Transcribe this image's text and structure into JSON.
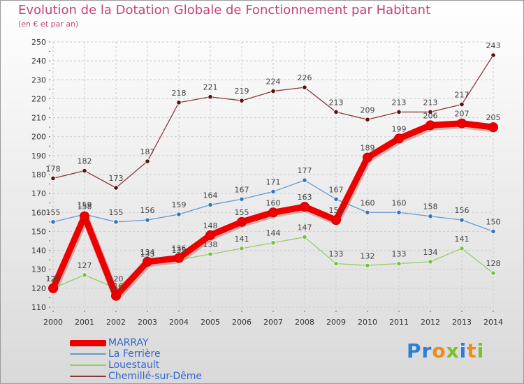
{
  "title": "Evolution de la Dotation Globale de Fonctionnement par Habitant",
  "subtitle": "(en € et par an)",
  "logo_text": "Proxiti",
  "chart_data": {
    "type": "line",
    "title": "Evolution de la Dotation Globale de Fonctionnement par Habitant",
    "subtitle": "(en € et par an)",
    "xlabel": "",
    "ylabel": "",
    "ylim": [
      110,
      250
    ],
    "yticks": [
      110,
      120,
      130,
      140,
      150,
      160,
      170,
      180,
      190,
      200,
      210,
      220,
      230,
      240,
      250
    ],
    "grid": true,
    "legend_position": "bottom-left",
    "categories": [
      "2000",
      "2001",
      "2002",
      "2003",
      "2004",
      "2005",
      "2006",
      "2007",
      "2008",
      "2009",
      "2010",
      "2011",
      "2012",
      "2013",
      "2014"
    ],
    "series": [
      {
        "name": "Chemillé-sur-Dême",
        "color": "#8b3a3a",
        "marker": "#5a1010",
        "width": 1.3,
        "values": [
          178,
          182,
          173,
          187,
          218,
          221,
          219,
          224,
          226,
          213,
          209,
          213,
          213,
          217,
          243
        ]
      },
      {
        "name": "Louestault",
        "color": "#99cc66",
        "marker": "#77c040",
        "width": 1.3,
        "values": [
          120,
          127,
          120,
          133,
          135,
          138,
          141,
          144,
          147,
          133,
          132,
          133,
          134,
          141,
          128
        ]
      },
      {
        "name": "La Ferrière",
        "color": "#6699cc",
        "marker": "#3377bb",
        "width": 1.3,
        "values": [
          155,
          159,
          155,
          156,
          159,
          164,
          167,
          171,
          177,
          167,
          160,
          160,
          158,
          156,
          150
        ]
      },
      {
        "name": "MARRAY",
        "color": "#ee0000",
        "marker": "#ee0000",
        "width": 9,
        "values": [
          120,
          158,
          116,
          134,
          136,
          148,
          155,
          160,
          163,
          156,
          189,
          199,
          206,
          207,
          205
        ]
      }
    ],
    "legend_order": [
      "MARRAY",
      "La Ferrière",
      "Louestault",
      "Chemillé-sur-Dême"
    ]
  }
}
